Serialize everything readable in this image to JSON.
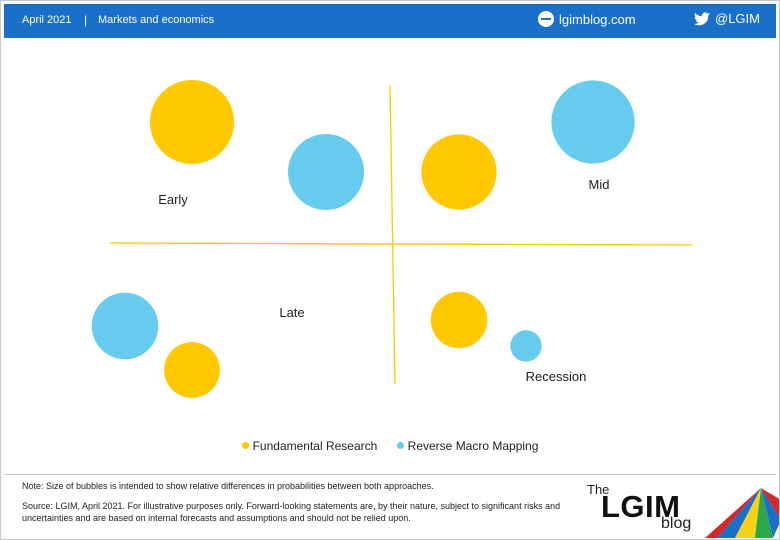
{
  "header": {
    "date": "April 2021",
    "separator": "|",
    "category": "Markets and economics",
    "site": "lgimblog.com",
    "twitter": "@LGIM",
    "bg_color": "#1a6fc9",
    "site_icon": "globe-icon",
    "twitter_icon": "twitter-bird-icon"
  },
  "chart_data": {
    "type": "bubble",
    "quadrant_labels": [
      {
        "label": "Early"
      },
      {
        "label": "Mid"
      },
      {
        "label": "Late"
      },
      {
        "label": "Recession"
      }
    ],
    "series": [
      {
        "name": "Fundamental Research",
        "color": "#ffc800",
        "bubbles": [
          {
            "phase": "Early",
            "relative_probability": 1.0
          },
          {
            "phase": "Mid",
            "relative_probability": 0.8
          },
          {
            "phase": "Late",
            "relative_probability": 0.44
          },
          {
            "phase": "Recession",
            "relative_probability": 0.45
          }
        ]
      },
      {
        "name": "Reverse Macro Mapping",
        "color": "#66cbec",
        "bubbles": [
          {
            "phase": "Early",
            "relative_probability": 0.82
          },
          {
            "phase": "Mid",
            "relative_probability": 0.98
          },
          {
            "phase": "Late",
            "relative_probability": 0.63
          },
          {
            "phase": "Recession",
            "relative_probability": 0.14
          }
        ]
      }
    ],
    "legend": "bottom",
    "grid": false,
    "axis_color": "#ffc800"
  },
  "footer": {
    "note": "Note: Size of bubbles is intended to show relative differences in probabilities between both approaches.",
    "source": "Source: LGIM,  April 2021. For illustrative purposes only. Forward-looking statements are, by their nature, subject to significant risks and uncertainties and are based on internal forecasts and assumptions and should not be relied upon.",
    "logo": {
      "the": "The",
      "lgim": "LGIM",
      "blog": "blog"
    }
  }
}
